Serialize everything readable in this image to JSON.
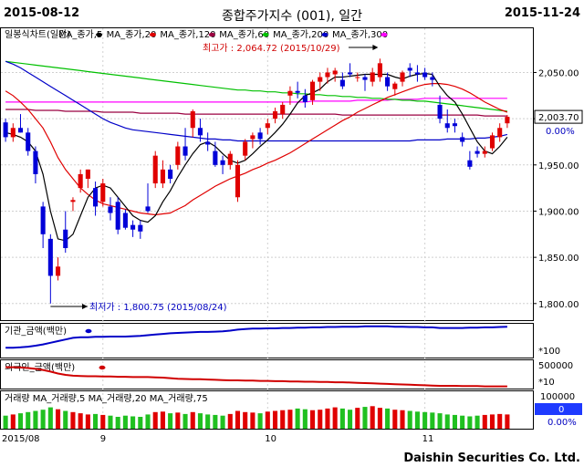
{
  "header": {
    "start_date": "2015-08-12",
    "end_date": "2015-11-24",
    "title": "종합주가지수 (001), 일간"
  },
  "brand": "Daishin Securities Co. Ltd.",
  "colors": {
    "up": "#e00000",
    "down": "#0000d8",
    "ma5": "#000000",
    "ma20": "#e00000",
    "ma60": "#00c000",
    "ma120": "#9b0040",
    "ma200": "#0000c8",
    "ma300": "#ff00ff",
    "vol_up": "#e00000",
    "vol_down": "#20c020"
  },
  "main_legend": [
    {
      "text": "일봉식차트(일간)",
      "color": "#000000"
    },
    {
      "text": "MA_종가,5",
      "color": "#000000",
      "marker": "#000000"
    },
    {
      "text": "MA_종가,20",
      "color": "#000000",
      "marker": "#e00000"
    },
    {
      "text": "MA_종가,120",
      "color": "#000000",
      "marker": "#9b0040"
    },
    {
      "text": "MA_종가,60",
      "color": "#000000",
      "marker": "#00c000"
    },
    {
      "text": "MA_종가,200",
      "color": "#000000",
      "marker": "#0000c8"
    },
    {
      "text": "MA_종가,300",
      "color": "#000000",
      "marker": "#ff00ff"
    }
  ],
  "high_annotation": "최고가 : 2,064.72 (2015/10/29)",
  "low_annotation": "최저가 : 1,800.75 (2015/08/24)",
  "price_label": "2,003.70",
  "change_label": "0.00%",
  "inst_legend": "기관_금액(백만)",
  "inst_scale": "*100",
  "foreign_legend": "외국인_금액(백만)",
  "foreign_scale_top": "500000",
  "foreign_scale_bottom": "*10",
  "vol_legend": "거래량 MA_거래량,5  MA_거래량,20  MA_거래량,75",
  "vol_scale_top": "100000",
  "vol_value": "0",
  "vol_change": "0.00%",
  "x_labels": [
    "2015/08",
    "9",
    "10",
    "11"
  ],
  "chart_data": {
    "type": "candlestick",
    "y_axis": {
      "ticks": [
        1800,
        1850,
        1900,
        1950,
        2000,
        2050
      ],
      "ylim": [
        1785,
        2085
      ]
    },
    "candles": [
      [
        1996,
        2000,
        1975,
        1980
      ],
      [
        1980,
        1995,
        1975,
        1990
      ],
      [
        1990,
        2005,
        1985,
        1985
      ],
      [
        1985,
        1990,
        1960,
        1965
      ],
      [
        1965,
        1970,
        1930,
        1940
      ],
      [
        1905,
        1910,
        1860,
        1875
      ],
      [
        1870,
        1875,
        1800,
        1830
      ],
      [
        1830,
        1850,
        1825,
        1840
      ],
      [
        1880,
        1900,
        1855,
        1860
      ],
      [
        1910,
        1915,
        1900,
        1912
      ],
      [
        1925,
        1945,
        1920,
        1940
      ],
      [
        1935,
        1945,
        1925,
        1945
      ],
      [
        1925,
        1932,
        1895,
        1905
      ],
      [
        1910,
        1935,
        1905,
        1930
      ],
      [
        1905,
        1915,
        1890,
        1898
      ],
      [
        1910,
        1915,
        1875,
        1880
      ],
      [
        1898,
        1902,
        1880,
        1882
      ],
      [
        1885,
        1890,
        1872,
        1880
      ],
      [
        1885,
        1890,
        1870,
        1878
      ],
      [
        1905,
        1930,
        1898,
        1900
      ],
      [
        1930,
        1965,
        1925,
        1960
      ],
      [
        1930,
        1955,
        1925,
        1945
      ],
      [
        1945,
        1950,
        1930,
        1935
      ],
      [
        1950,
        1975,
        1945,
        1970
      ],
      [
        1970,
        1990,
        1955,
        1960
      ],
      [
        1990,
        2010,
        1980,
        2008
      ],
      [
        1990,
        2000,
        1975,
        1982
      ],
      [
        1975,
        1985,
        1965,
        1972
      ],
      [
        1965,
        1975,
        1948,
        1950
      ],
      [
        1955,
        1960,
        1940,
        1950
      ],
      [
        1950,
        1965,
        1945,
        1962
      ],
      [
        1915,
        1955,
        1910,
        1950
      ],
      [
        1960,
        1978,
        1955,
        1975
      ],
      [
        1978,
        1985,
        1968,
        1982
      ],
      [
        1985,
        1990,
        1972,
        1978
      ],
      [
        1990,
        2000,
        1983,
        1995
      ],
      [
        2000,
        2012,
        1995,
        2008
      ],
      [
        2005,
        2018,
        2000,
        2015
      ],
      [
        2025,
        2035,
        2015,
        2030
      ],
      [
        2030,
        2040,
        2022,
        2028
      ],
      [
        2025,
        2032,
        2012,
        2018
      ],
      [
        2020,
        2042,
        2015,
        2040
      ],
      [
        2040,
        2050,
        2030,
        2045
      ],
      [
        2045,
        2055,
        2038,
        2050
      ],
      [
        2048,
        2055,
        2040,
        2052
      ],
      [
        2042,
        2050,
        2032,
        2035
      ],
      [
        2050,
        2060,
        2045,
        2048
      ],
      [
        2045,
        2050,
        2040,
        2045
      ],
      [
        2045,
        2048,
        2030,
        2042
      ],
      [
        2040,
        2055,
        2035,
        2050
      ],
      [
        2045,
        2065,
        2040,
        2060
      ],
      [
        2045,
        2050,
        2030,
        2035
      ],
      [
        2032,
        2040,
        2025,
        2038
      ],
      [
        2040,
        2052,
        2035,
        2050
      ],
      [
        2055,
        2060,
        2045,
        2052
      ],
      [
        2050,
        2058,
        2040,
        2048
      ],
      [
        2050,
        2055,
        2042,
        2045
      ],
      [
        2045,
        2050,
        2035,
        2042
      ],
      [
        2015,
        2025,
        1995,
        2000
      ],
      [
        1995,
        2010,
        1985,
        1990
      ],
      [
        1995,
        2000,
        1985,
        1992
      ],
      [
        1980,
        1985,
        1970,
        1975
      ],
      [
        1955,
        1965,
        1945,
        1948
      ],
      [
        1965,
        1970,
        1958,
        1962
      ],
      [
        1962,
        1970,
        1958,
        1965
      ],
      [
        1968,
        1985,
        1965,
        1982
      ],
      [
        1980,
        1995,
        1975,
        1990
      ],
      [
        1995,
        2004,
        1990,
        2002
      ]
    ],
    "ma5": [
      1985,
      1983,
      1980,
      1975,
      1965,
      1940,
      1900,
      1870,
      1868,
      1875,
      1895,
      1915,
      1925,
      1928,
      1925,
      1915,
      1905,
      1895,
      1890,
      1888,
      1895,
      1910,
      1922,
      1937,
      1950,
      1962,
      1972,
      1975,
      1970,
      1962,
      1955,
      1952,
      1955,
      1962,
      1970,
      1977,
      1985,
      1994,
      2005,
      2017,
      2025,
      2028,
      2032,
      2040,
      2045,
      2045,
      2046,
      2047,
      2048,
      2048,
      2048,
      2048,
      2045,
      2043,
      2046,
      2048,
      2049,
      2048,
      2035,
      2025,
      2018,
      2005,
      1990,
      1975,
      1965,
      1962,
      1970,
      1980
    ],
    "ma20": [
      2030,
      2025,
      2018,
      2010,
      2000,
      1990,
      1975,
      1958,
      1945,
      1935,
      1925,
      1918,
      1912,
      1908,
      1906,
      1904,
      1902,
      1900,
      1898,
      1897,
      1896,
      1897,
      1898,
      1902,
      1906,
      1912,
      1917,
      1922,
      1927,
      1931,
      1935,
      1938,
      1941,
      1945,
      1948,
      1952,
      1955,
      1959,
      1963,
      1968,
      1973,
      1978,
      1983,
      1988,
      1993,
      1998,
      2002,
      2007,
      2011,
      2015,
      2019,
      2023,
      2026,
      2029,
      2032,
      2035,
      2037,
      2038,
      2038,
      2037,
      2035,
      2032,
      2028,
      2023,
      2018,
      2014,
      2010,
      2007
    ],
    "ma60": [
      2062,
      2061,
      2060,
      2059,
      2058,
      2057,
      2056,
      2055,
      2054,
      2053,
      2052,
      2051,
      2050,
      2049,
      2048,
      2047,
      2046,
      2045,
      2044,
      2043,
      2042,
      2041,
      2040,
      2039,
      2038,
      2037,
      2036,
      2035,
      2034,
      2033,
      2032,
      2031,
      2031,
      2030,
      2030,
      2029,
      2029,
      2028,
      2028,
      2027,
      2027,
      2026,
      2026,
      2025,
      2025,
      2024,
      2024,
      2023,
      2023,
      2022,
      2022,
      2021,
      2021,
      2020,
      2020,
      2019,
      2019,
      2018,
      2017,
      2016,
      2015,
      2014,
      2013,
      2012,
      2011,
      2010,
      2009,
      2008
    ],
    "ma120": [
      2010,
      2010,
      2010,
      2010,
      2009,
      2009,
      2009,
      2009,
      2008,
      2008,
      2008,
      2008,
      2008,
      2007,
      2007,
      2007,
      2007,
      2007,
      2006,
      2006,
      2006,
      2006,
      2006,
      2006,
      2005,
      2005,
      2005,
      2005,
      2005,
      2005,
      2005,
      2005,
      2005,
      2005,
      2005,
      2005,
      2005,
      2005,
      2005,
      2005,
      2005,
      2005,
      2005,
      2005,
      2005,
      2004,
      2004,
      2004,
      2004,
      2004,
      2004,
      2004,
      2004,
      2004,
      2004,
      2004,
      2004,
      2004,
      2004,
      2004,
      2004,
      2004,
      2004,
      2004,
      2003,
      2003,
      2003,
      2003
    ],
    "ma200": [
      2062,
      2059,
      2055,
      2050,
      2045,
      2040,
      2035,
      2030,
      2025,
      2020,
      2015,
      2010,
      2005,
      2000,
      1996,
      1993,
      1990,
      1988,
      1987,
      1986,
      1985,
      1984,
      1983,
      1982,
      1981,
      1980,
      1979,
      1978,
      1978,
      1977,
      1977,
      1976,
      1976,
      1976,
      1976,
      1976,
      1976,
      1976,
      1976,
      1976,
      1976,
      1976,
      1976,
      1976,
      1976,
      1976,
      1976,
      1976,
      1976,
      1976,
      1976,
      1976,
      1976,
      1976,
      1976,
      1977,
      1977,
      1977,
      1977,
      1978,
      1978,
      1978,
      1978,
      1979,
      1979,
      1980,
      1981,
      1983
    ],
    "ma300": [
      2018,
      2018,
      2018,
      2018,
      2018,
      2018,
      2018,
      2018,
      2018,
      2018,
      2018,
      2018,
      2018,
      2018,
      2018,
      2018,
      2018,
      2018,
      2018,
      2018,
      2018,
      2018,
      2018,
      2018,
      2018,
      2018,
      2018,
      2018,
      2018,
      2018,
      2018,
      2018,
      2018,
      2018,
      2018,
      2018,
      2018,
      2018,
      2018,
      2018,
      2018,
      2019,
      2019,
      2019,
      2019,
      2019,
      2019,
      2020,
      2020,
      2020,
      2020,
      2020,
      2021,
      2021,
      2021,
      2021,
      2022,
      2022,
      2022,
      2022,
      2022,
      2022,
      2022,
      2022,
      2022,
      2022,
      2022,
      2022
    ],
    "volume_pct": [
      55,
      60,
      65,
      70,
      75,
      80,
      90,
      82,
      75,
      70,
      65,
      60,
      62,
      58,
      55,
      50,
      55,
      52,
      50,
      60,
      70,
      72,
      65,
      68,
      62,
      70,
      65,
      60,
      58,
      55,
      62,
      75,
      70,
      68,
      65,
      72,
      75,
      78,
      80,
      85,
      82,
      78,
      80,
      85,
      90,
      85,
      80,
      88,
      92,
      95,
      88,
      85,
      80,
      78,
      75,
      72,
      70,
      68,
      65,
      60,
      58,
      55,
      52,
      55,
      58,
      60,
      62,
      60
    ],
    "inst_line": [
      30,
      30,
      31,
      33,
      36,
      40,
      45,
      50,
      55,
      60,
      62,
      62,
      63,
      63,
      64,
      64,
      64,
      65,
      66,
      68,
      70,
      72,
      74,
      75,
      76,
      77,
      78,
      78,
      79,
      80,
      82,
      85,
      87,
      88,
      88,
      89,
      89,
      90,
      90,
      91,
      91,
      92,
      92,
      93,
      93,
      94,
      94,
      94,
      95,
      95,
      95,
      95,
      94,
      94,
      93,
      93,
      92,
      92,
      90,
      90,
      90,
      90,
      91,
      91,
      92,
      92,
      93,
      94
    ],
    "foreign_line": [
      78,
      78,
      77,
      75,
      72,
      68,
      62,
      55,
      50,
      47,
      46,
      45,
      45,
      44,
      44,
      43,
      43,
      42,
      42,
      42,
      41,
      40,
      38,
      36,
      35,
      34,
      34,
      33,
      32,
      31,
      30,
      30,
      29,
      29,
      28,
      28,
      27,
      27,
      26,
      26,
      25,
      25,
      24,
      24,
      23,
      23,
      22,
      21,
      20,
      19,
      18,
      17,
      16,
      15,
      14,
      13,
      12,
      11,
      10,
      10,
      10,
      9,
      9,
      9,
      8,
      8,
      8,
      8
    ]
  }
}
